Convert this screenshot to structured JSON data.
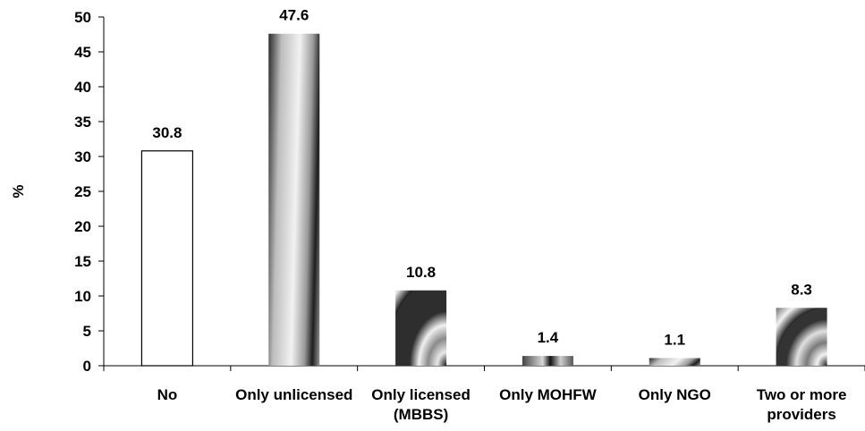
{
  "chart_data": {
    "type": "bar",
    "categories": [
      [
        "No"
      ],
      [
        "Only unlicensed"
      ],
      [
        "Only licensed",
        "(MBBS)"
      ],
      [
        "Only MOHFW"
      ],
      [
        "Only NGO"
      ],
      [
        "Two or more",
        "providers"
      ]
    ],
    "values": [
      30.8,
      47.6,
      10.8,
      1.4,
      1.1,
      8.3
    ],
    "value_labels": [
      "30.8",
      "47.6",
      "10.8",
      "1.4",
      "1.1",
      "8.3"
    ],
    "ylabel": "%",
    "ylim": [
      0,
      50
    ],
    "yticks": [
      0,
      5,
      10,
      15,
      20,
      25,
      30,
      35,
      40,
      45,
      50
    ],
    "grid": false,
    "legend": "none",
    "bar_fills": [
      "white",
      "diagonal-gradient",
      "concentric-arcs",
      "vertical-gradient",
      "diagonal-gradient",
      "concentric-squares"
    ]
  }
}
